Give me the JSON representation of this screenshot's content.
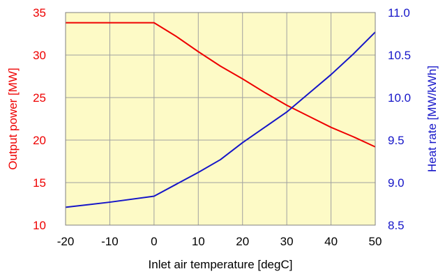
{
  "chart_data": {
    "type": "line",
    "xlabel": "Inlet air temperature [degC]",
    "ylabel_left": "Output power [MW]",
    "ylabel_right": "Heat rate [MW/kWh]",
    "xlim": [
      -20,
      50
    ],
    "ylim_left": [
      10,
      35
    ],
    "ylim_right": [
      8.5,
      11.0
    ],
    "x_ticks": [
      "-20",
      "-10",
      "0",
      "10",
      "20",
      "30",
      "40",
      "50"
    ],
    "y_left_ticks": [
      "10",
      "15",
      "20",
      "25",
      "30",
      "35"
    ],
    "y_right_ticks": [
      "8.5",
      "9.0",
      "9.5",
      "10.0",
      "10.5",
      "11.0"
    ],
    "grid": true,
    "colors": {
      "plot_background": "#fdfac6",
      "grid": "#a0a0a0",
      "left_axis": "#ee0000",
      "right_axis": "#1515c8"
    },
    "series": [
      {
        "axis": "left",
        "color": "#ee0000",
        "points": [
          [
            -20,
            33.8
          ],
          [
            0,
            33.8
          ],
          [
            5,
            32.2
          ],
          [
            10,
            30.4
          ],
          [
            15,
            28.7
          ],
          [
            20,
            27.2
          ],
          [
            25,
            25.6
          ],
          [
            30,
            24.1
          ],
          [
            35,
            22.8
          ],
          [
            40,
            21.5
          ],
          [
            45,
            20.4
          ],
          [
            50,
            19.2
          ]
        ]
      },
      {
        "axis": "right",
        "color": "#1515c8",
        "points": [
          [
            -20,
            8.71
          ],
          [
            -10,
            8.77
          ],
          [
            0,
            8.84
          ],
          [
            5,
            8.98
          ],
          [
            10,
            9.12
          ],
          [
            15,
            9.27
          ],
          [
            20,
            9.47
          ],
          [
            25,
            9.65
          ],
          [
            30,
            9.83
          ],
          [
            35,
            10.05
          ],
          [
            40,
            10.27
          ],
          [
            45,
            10.51
          ],
          [
            50,
            10.77
          ]
        ]
      }
    ]
  }
}
